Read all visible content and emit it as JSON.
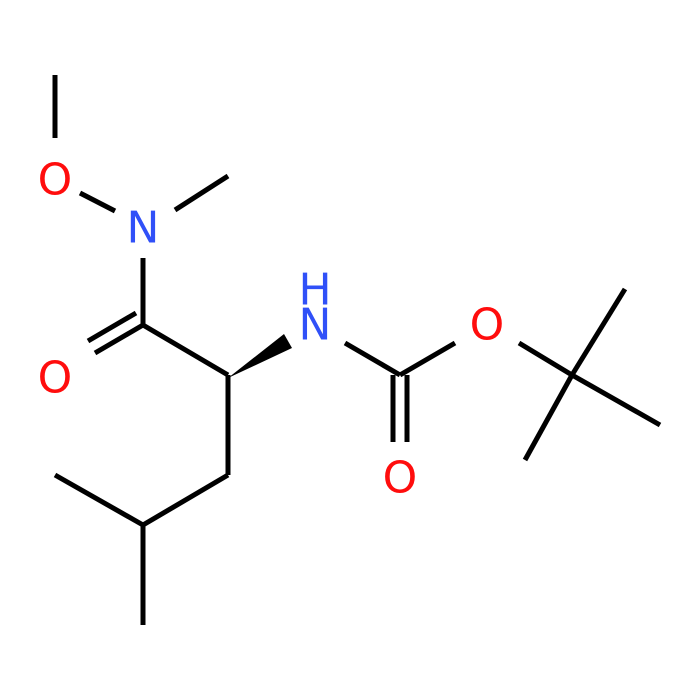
{
  "atoms": [
    {
      "label": "O"
    },
    {
      "label": "N"
    },
    {
      "label": "O"
    },
    {
      "label": "H"
    },
    {
      "label": "N"
    },
    {
      "label": "O"
    },
    {
      "label": "O"
    }
  ]
}
